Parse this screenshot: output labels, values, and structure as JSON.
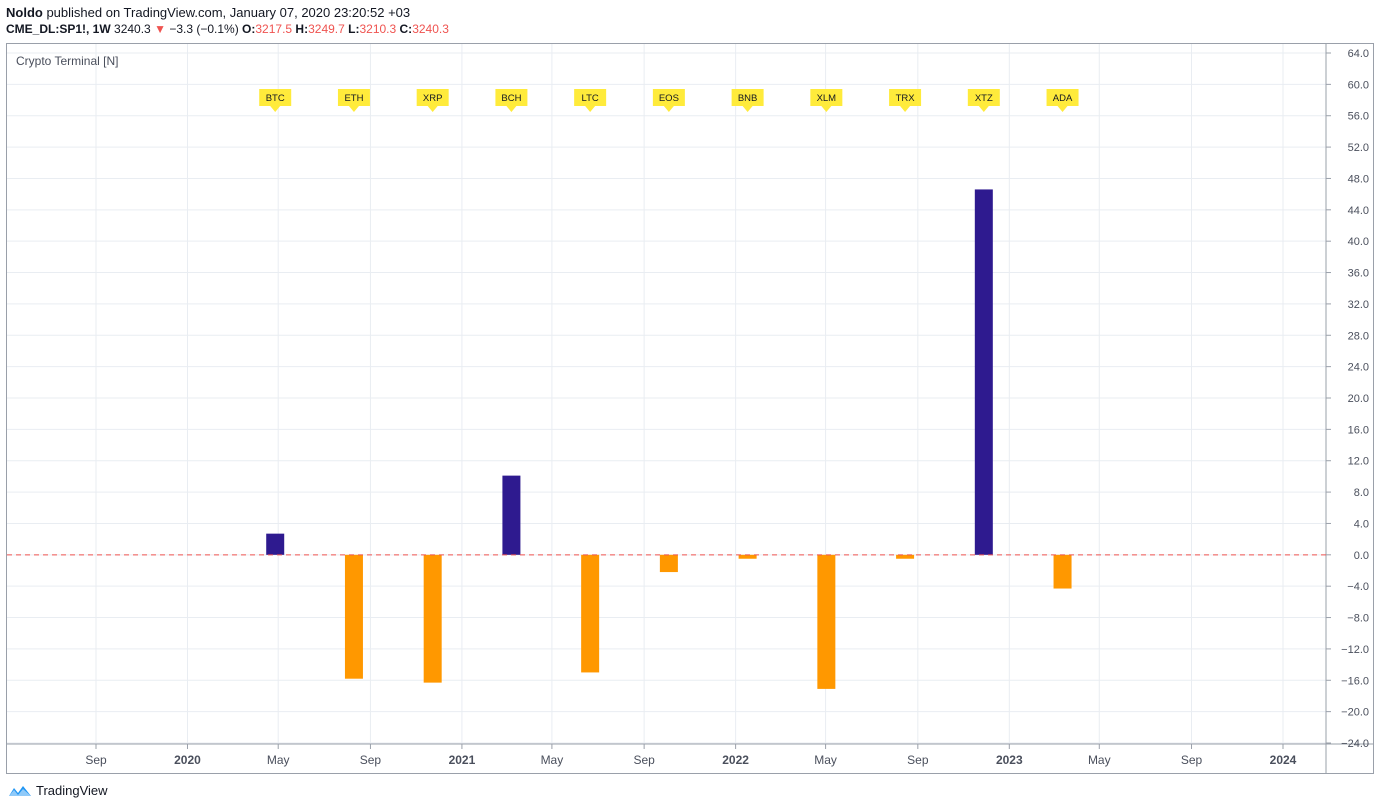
{
  "header": {
    "author": "Noldo",
    "published": "published on TradingView.com, January 07, 2020 23:20:52 +03",
    "symbol": "CME_DL:SP1!, 1W",
    "last": "3240.3",
    "arrow": "▼",
    "change": "−3.3 (−0.1%)",
    "o_label": "O:",
    "o": "3217.5",
    "h_label": "H:",
    "h": "3249.7",
    "l_label": "L:",
    "l": "3210.3",
    "c_label": "C:",
    "c": "3240.3"
  },
  "indicator_label": "Crypto Terminal [N]",
  "footer": {
    "brand": "TradingView"
  },
  "colors": {
    "positive": "#2e1a8f",
    "negative": "#ff9800",
    "label_bg": "#ffeb3b",
    "zero_line": "#ef5350",
    "grid": "#e9edf2"
  },
  "chart_data": {
    "type": "bar",
    "title": "Crypto Terminal [N]",
    "categories": [
      "BTC",
      "ETH",
      "XRP",
      "BCH",
      "LTC",
      "EOS",
      "BNB",
      "XLM",
      "TRX",
      "XTZ",
      "ADA"
    ],
    "values": [
      2.7,
      -15.8,
      -16.3,
      10.1,
      -15.0,
      -2.2,
      -0.5,
      -17.1,
      -0.5,
      46.6,
      -4.3
    ],
    "x_dates": [
      "2020-04-27",
      "2020-08-10",
      "2020-11-23",
      "2021-03-08",
      "2021-06-21",
      "2021-10-04",
      "2022-01-17",
      "2022-05-02",
      "2022-08-15",
      "2022-11-28",
      "2023-03-13"
    ],
    "x_ticks": [
      "Sep",
      "2020",
      "May",
      "Sep",
      "2021",
      "May",
      "Sep",
      "2022",
      "May",
      "Sep",
      "2023",
      "May",
      "Sep",
      "2024"
    ],
    "x_tick_dates": [
      "2019-09-01",
      "2020-01-01",
      "2020-05-01",
      "2020-09-01",
      "2021-01-01",
      "2021-05-01",
      "2021-09-01",
      "2022-01-01",
      "2022-05-01",
      "2022-09-01",
      "2023-01-01",
      "2023-05-01",
      "2023-09-01",
      "2024-01-01"
    ],
    "y_ticks": [
      "64.0",
      "60.0",
      "56.0",
      "52.0",
      "48.0",
      "44.0",
      "40.0",
      "36.0",
      "32.0",
      "28.0",
      "24.0",
      "20.0",
      "16.0",
      "12.0",
      "8.0",
      "4.0",
      "0.0",
      "−4.0",
      "−8.0",
      "−12.0",
      "−16.0",
      "−20.0",
      "−24.0"
    ],
    "ylim": [
      -24,
      64
    ],
    "zero_line": 0,
    "grid": true
  }
}
